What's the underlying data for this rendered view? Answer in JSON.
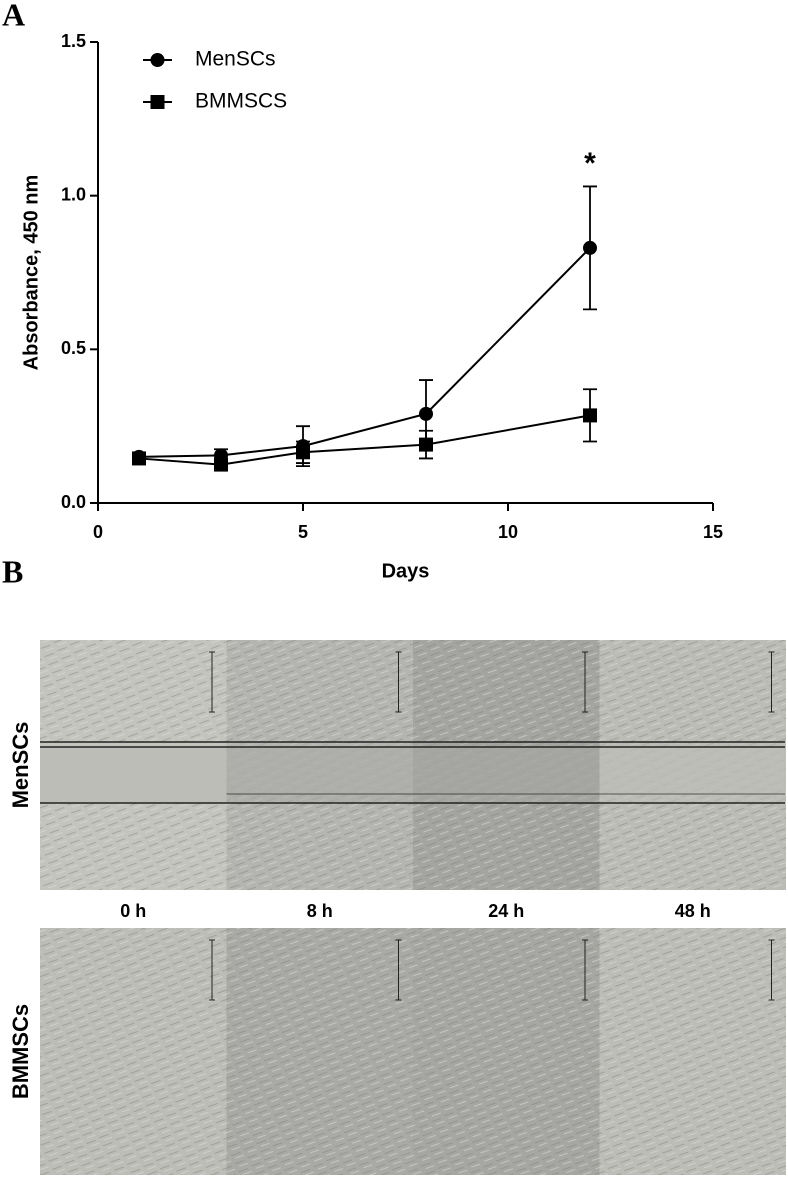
{
  "panel_a_label": "A",
  "chart_data": {
    "type": "line",
    "xlabel": "Days",
    "ylabel": "Absorbance, 450 nm",
    "x": [
      1,
      3,
      5,
      8,
      12
    ],
    "series": [
      {
        "name": "MenSCs",
        "color": "#000000",
        "marker": "circle",
        "values": [
          0.15,
          0.155,
          0.185,
          0.29,
          0.83
        ],
        "errors": [
          0.01,
          0.02,
          0.065,
          0.11,
          0.2
        ]
      },
      {
        "name": "BMMSCS",
        "color": "#000000",
        "marker": "square",
        "values": [
          0.145,
          0.125,
          0.165,
          0.19,
          0.285
        ],
        "errors": [
          0.01,
          0.01,
          0.035,
          0.045,
          0.085
        ]
      }
    ],
    "annotations": [
      {
        "text": "*",
        "x": 12,
        "y": 1.1
      }
    ],
    "xlim": [
      0,
      15
    ],
    "xticks": [
      0,
      5,
      10,
      15
    ],
    "ylim": [
      0,
      1.5
    ],
    "yticks": [
      {
        "value": 0,
        "label": "0.0"
      },
      0.5,
      {
        "value": 1,
        "label": "1.0"
      },
      1.5
    ],
    "grid": false,
    "legend": "upper left"
  },
  "panel_b": {
    "label": "B",
    "rows": [
      "MenSCs",
      "BMMSCs"
    ],
    "columns": [
      "0 h",
      "8 h",
      "24 h",
      "48 h"
    ]
  }
}
